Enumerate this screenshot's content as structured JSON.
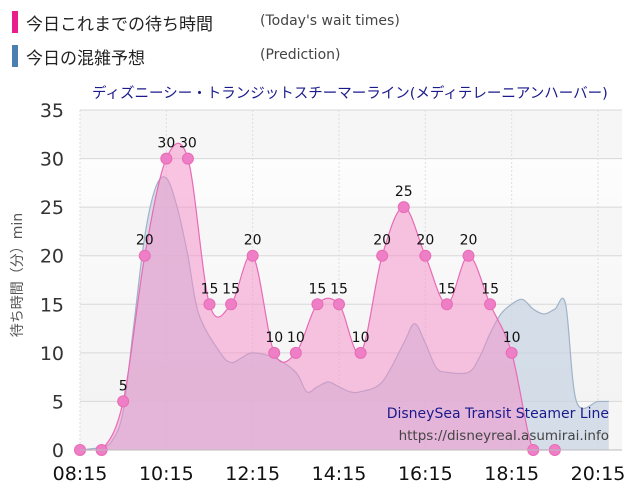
{
  "legend": {
    "today": {
      "label": "今日これまでの待ち時間",
      "note": "(Today's wait times)",
      "color": "#e91e8c"
    },
    "prediction": {
      "label": "今日の混雑予想",
      "note": "(Prediction)",
      "color": "#4a7fb0"
    }
  },
  "chart_data": {
    "type": "area",
    "title": "ディズニーシー・トランジットスチーマーライン(メディテレーニアンハーバー)",
    "ylabel": "待ち時間（分）min",
    "xlabel": "",
    "ylim": [
      0,
      35
    ],
    "y_ticks": [
      0,
      5,
      10,
      15,
      20,
      25,
      30,
      35
    ],
    "x_tick_labels": [
      "08:15",
      "10:15",
      "12:15",
      "14:15",
      "16:15",
      "18:15",
      "20:15"
    ],
    "x_range": [
      "08:15",
      "20:15"
    ],
    "grid": true,
    "watermark": [
      "DisneySea Transit Steamer Line",
      "https://disneyreal.asumirai.info"
    ],
    "series": [
      {
        "name": "今日これまでの待ち時間",
        "color": "#e91e8c",
        "points": [
          [
            "08:15",
            0
          ],
          [
            "08:45",
            0
          ],
          [
            "09:15",
            5
          ],
          [
            "09:45",
            20
          ],
          [
            "10:15",
            30
          ],
          [
            "10:45",
            30
          ],
          [
            "11:15",
            15
          ],
          [
            "11:45",
            15
          ],
          [
            "12:15",
            20
          ],
          [
            "12:45",
            10
          ],
          [
            "13:15",
            10
          ],
          [
            "13:45",
            15
          ],
          [
            "14:15",
            15
          ],
          [
            "14:45",
            10
          ],
          [
            "15:15",
            20
          ],
          [
            "15:45",
            25
          ],
          [
            "16:15",
            20
          ],
          [
            "16:45",
            15
          ],
          [
            "17:15",
            20
          ],
          [
            "17:45",
            15
          ],
          [
            "18:15",
            10
          ],
          [
            "18:45",
            0
          ],
          [
            "19:15",
            0
          ]
        ]
      },
      {
        "name": "今日の混雑予想",
        "color": "#4a7fb0",
        "points": [
          [
            "08:15",
            0
          ],
          [
            "08:45",
            0.3
          ],
          [
            "09:00",
            1
          ],
          [
            "09:15",
            4
          ],
          [
            "09:30",
            13
          ],
          [
            "09:45",
            22
          ],
          [
            "10:00",
            27
          ],
          [
            "10:15",
            28
          ],
          [
            "10:30",
            25
          ],
          [
            "10:45",
            20
          ],
          [
            "11:00",
            14
          ],
          [
            "11:30",
            10
          ],
          [
            "11:45",
            9
          ],
          [
            "12:00",
            9.5
          ],
          [
            "12:15",
            10
          ],
          [
            "12:45",
            9.5
          ],
          [
            "13:15",
            8
          ],
          [
            "13:30",
            6
          ],
          [
            "13:45",
            6.5
          ],
          [
            "14:00",
            7
          ],
          [
            "14:15",
            6.5
          ],
          [
            "14:30",
            6
          ],
          [
            "14:45",
            6
          ],
          [
            "15:15",
            7
          ],
          [
            "15:45",
            11
          ],
          [
            "16:00",
            13
          ],
          [
            "16:15",
            11
          ],
          [
            "16:30",
            8.5
          ],
          [
            "16:45",
            8
          ],
          [
            "17:15",
            8
          ],
          [
            "17:30",
            9.5
          ],
          [
            "17:45",
            12
          ],
          [
            "18:00",
            14
          ],
          [
            "18:15",
            15
          ],
          [
            "18:30",
            15.5
          ],
          [
            "18:45",
            14.5
          ],
          [
            "19:00",
            14
          ],
          [
            "19:15",
            14.5
          ],
          [
            "19:30",
            15
          ],
          [
            "19:45",
            5
          ],
          [
            "20:15",
            5
          ],
          [
            "20:30",
            5
          ]
        ]
      }
    ]
  }
}
